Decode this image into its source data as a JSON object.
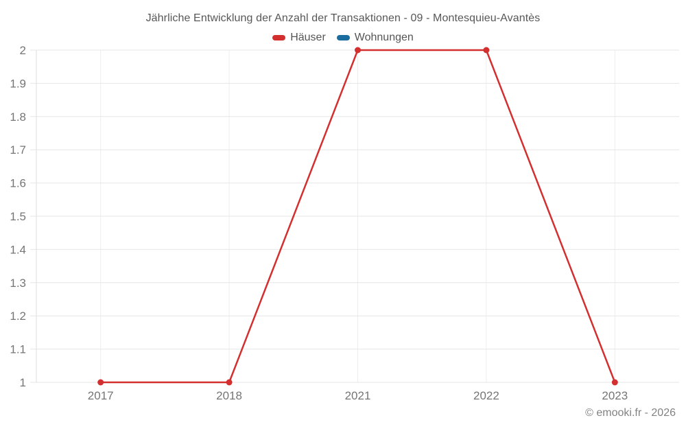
{
  "chart_data": {
    "type": "line",
    "title": "Jährliche Entwicklung der Anzahl der Transaktionen - 09 - Montesquieu-Avantès",
    "categories": [
      "2017",
      "2018",
      "2021",
      "2022",
      "2023"
    ],
    "series": [
      {
        "name": "Häuser",
        "color": "#d32f2f",
        "values": [
          1,
          1,
          2,
          2,
          1
        ]
      },
      {
        "name": "Wohnungen",
        "color": "#1a6d9e",
        "values": []
      }
    ],
    "xlabel": "",
    "ylabel": "",
    "ylim": [
      1,
      2
    ],
    "ytick_step": 0.1,
    "ytick_labels": [
      "1",
      "1.1",
      "1.2",
      "1.3",
      "1.4",
      "1.5",
      "1.6",
      "1.7",
      "1.8",
      "1.9",
      "2"
    ],
    "grid": true,
    "legend_position": "top",
    "axis_label_color": "#757575",
    "gridline_color": "#e6e6e6",
    "vertical_gridline_color": "#ededed",
    "axis_line_color": "#dedede",
    "footer": "© emooki.fr - 2026"
  }
}
